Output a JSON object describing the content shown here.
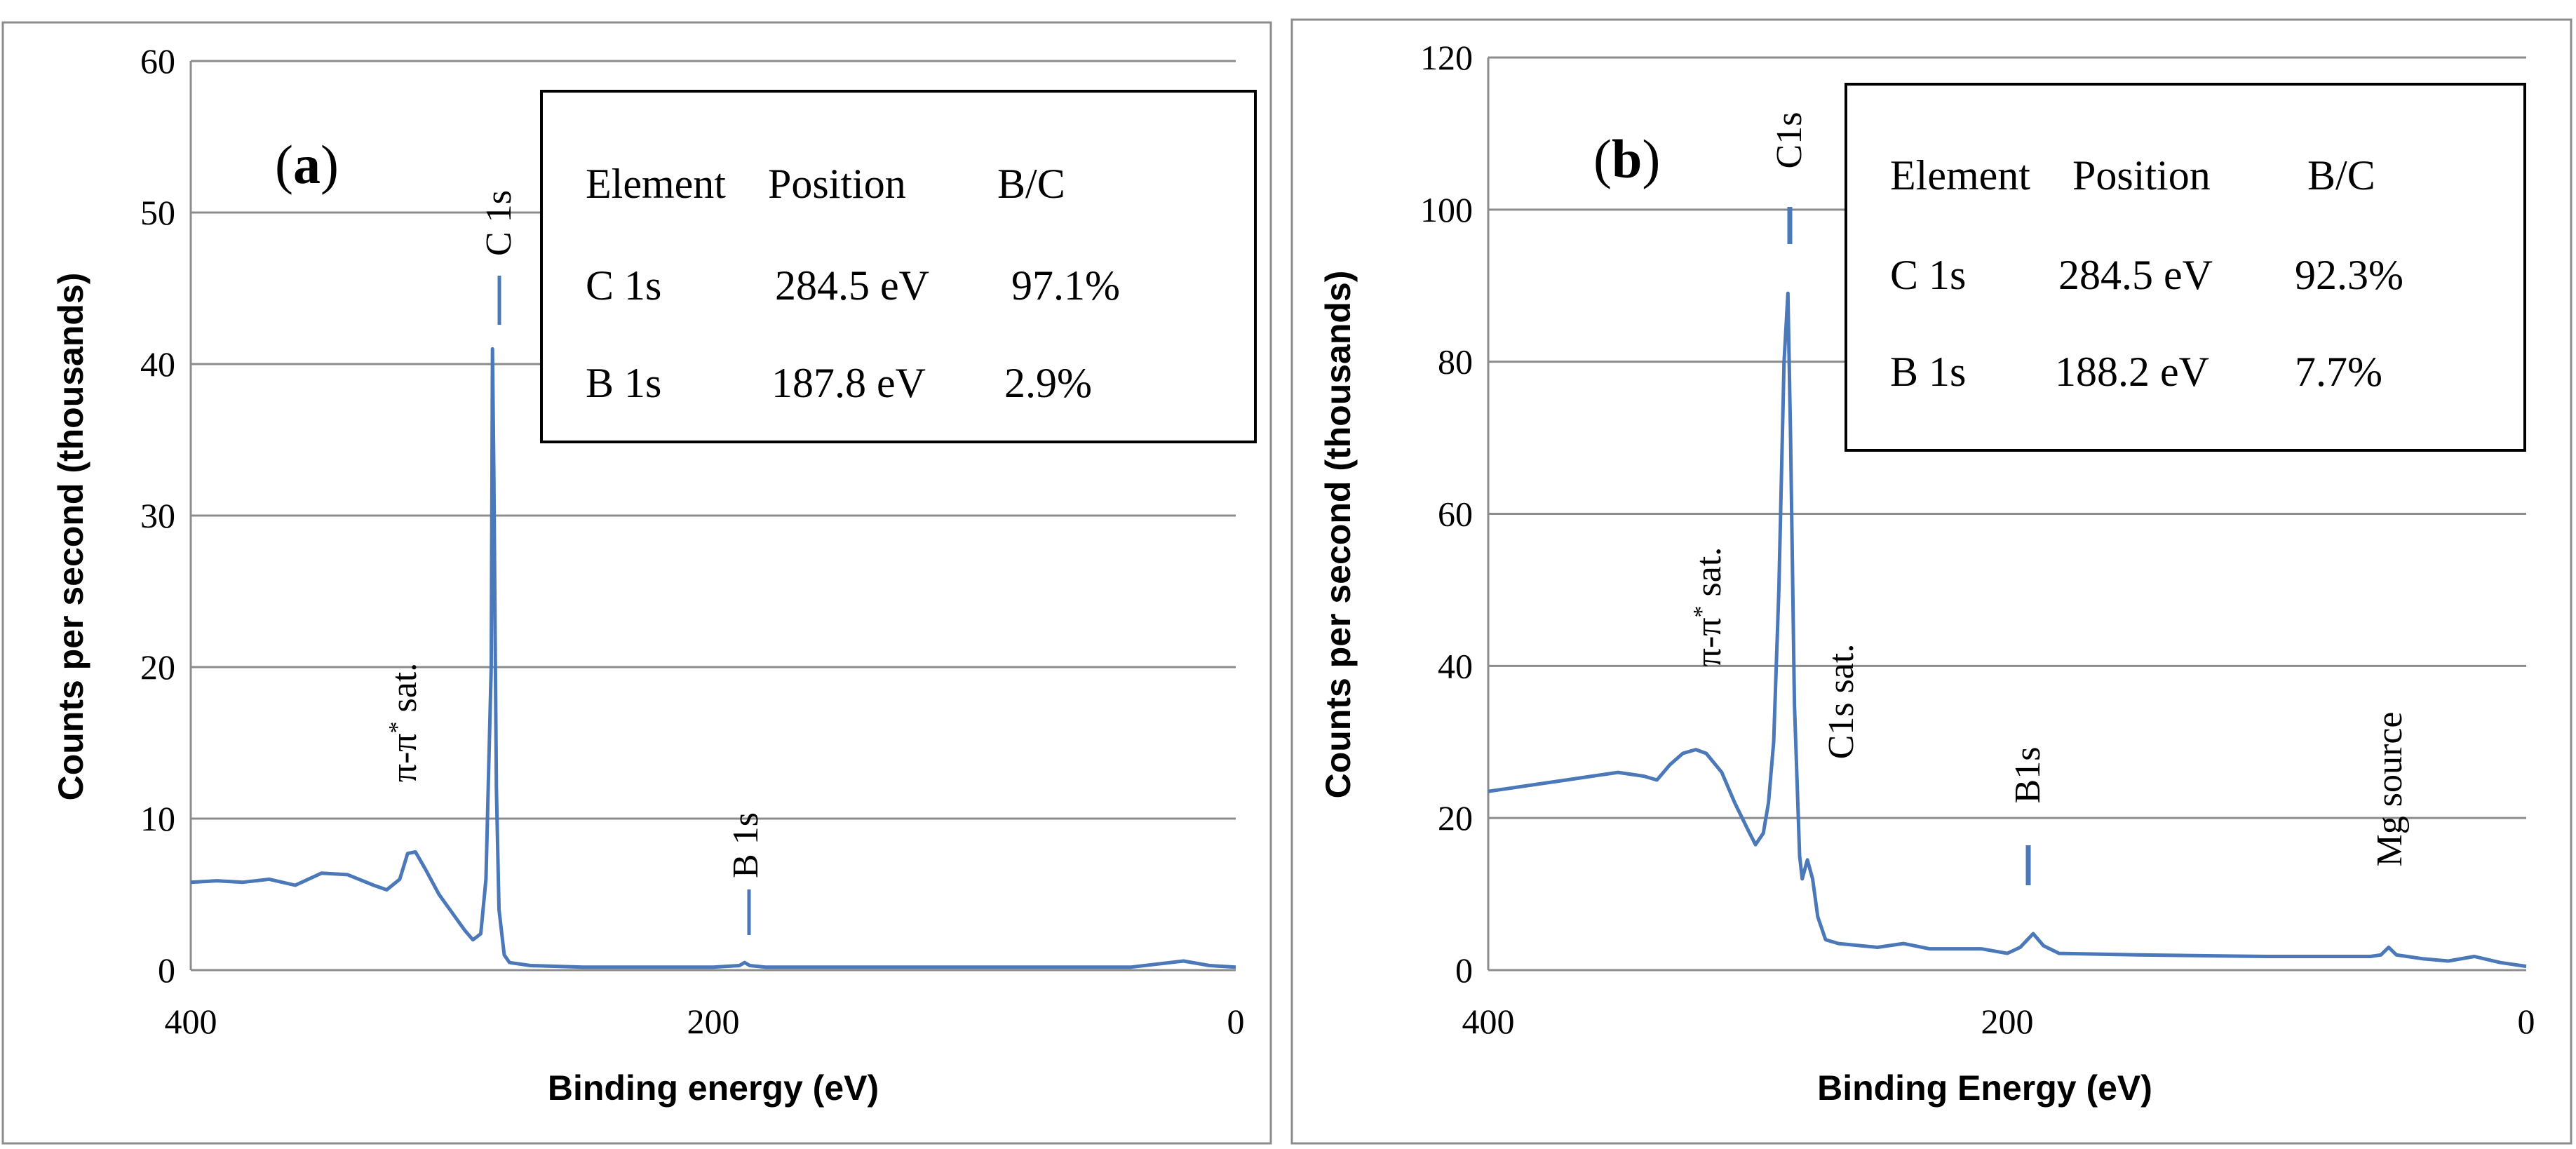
{
  "figure": {
    "colors": {
      "line": "#4a78b9",
      "grid": "#8c8c8c",
      "frame": "#8c8c8c",
      "box": "#000000",
      "background": "#ffffff"
    }
  },
  "chart_data": [
    {
      "type": "line",
      "panel_label": "a",
      "xlabel": "Binding energy  (eV)",
      "ylabel": "Counts per second (thousands)",
      "xlim": [
        400,
        0
      ],
      "ylim": [
        0,
        60
      ],
      "x_ticks": [
        "400",
        "200",
        "0"
      ],
      "y_ticks": [
        "0",
        "10",
        "20",
        "30",
        "40",
        "50",
        "60"
      ],
      "grid": true,
      "series": [
        {
          "name": "XPS survey spectrum",
          "points": [
            [
              400,
              5.8
            ],
            [
              390,
              5.9
            ],
            [
              380,
              5.8
            ],
            [
              370,
              6.0
            ],
            [
              360,
              5.6
            ],
            [
              350,
              6.4
            ],
            [
              340,
              6.3
            ],
            [
              330,
              5.6
            ],
            [
              325,
              5.3
            ],
            [
              320,
              6.0
            ],
            [
              317,
              7.7
            ],
            [
              314,
              7.8
            ],
            [
              310,
              6.6
            ],
            [
              305,
              5.0
            ],
            [
              300,
              3.8
            ],
            [
              295,
              2.6
            ],
            [
              292,
              2.0
            ],
            [
              289,
              2.4
            ],
            [
              287,
              6
            ],
            [
              285,
              20
            ],
            [
              284.5,
              41
            ],
            [
              284,
              33
            ],
            [
              283,
              12
            ],
            [
              282,
              4
            ],
            [
              280,
              1.0
            ],
            [
              278,
              0.5
            ],
            [
              270,
              0.3
            ],
            [
              250,
              0.2
            ],
            [
              200,
              0.2
            ],
            [
              190,
              0.3
            ],
            [
              188,
              0.5
            ],
            [
              186,
              0.3
            ],
            [
              180,
              0.2
            ],
            [
              100,
              0.2
            ],
            [
              40,
              0.2
            ],
            [
              20,
              0.6
            ],
            [
              10,
              0.3
            ],
            [
              0,
              0.2
            ]
          ]
        }
      ],
      "annotations": [
        {
          "text": "C 1s",
          "x": 284.5,
          "y": 45
        },
        {
          "text": "B 1s",
          "x": 188,
          "y": 3
        },
        {
          "text": "π-π",
          "superscript": "*",
          "suffix": " sat.",
          "x": 317,
          "y": 14
        }
      ],
      "table": {
        "headers": [
          "Element",
          "Position",
          "B/C"
        ],
        "rows": [
          [
            "C 1s",
            "284.5 eV",
            "97.1%"
          ],
          [
            "B 1s",
            "187.8 eV",
            "2.9%"
          ]
        ]
      }
    },
    {
      "type": "line",
      "panel_label": "b",
      "xlabel": "Binding Energy (eV)",
      "ylabel": "Counts per second (thousands)",
      "xlim": [
        400,
        0
      ],
      "ylim": [
        0,
        120
      ],
      "x_ticks": [
        "400",
        "200",
        "0"
      ],
      "y_ticks": [
        "0",
        "20",
        "40",
        "60",
        "80",
        "100",
        "120"
      ],
      "grid": true,
      "series": [
        {
          "name": "XPS survey spectrum",
          "points": [
            [
              400,
              23.5
            ],
            [
              390,
              24.0
            ],
            [
              380,
              24.5
            ],
            [
              370,
              25.0
            ],
            [
              360,
              25.5
            ],
            [
              350,
              26.0
            ],
            [
              340,
              25.5
            ],
            [
              335,
              25.0
            ],
            [
              330,
              27.0
            ],
            [
              325,
              28.5
            ],
            [
              320,
              29.0
            ],
            [
              316,
              28.5
            ],
            [
              310,
              26.0
            ],
            [
              305,
              22.0
            ],
            [
              300,
              18.5
            ],
            [
              297,
              16.5
            ],
            [
              294,
              18.0
            ],
            [
              292,
              22
            ],
            [
              290,
              30
            ],
            [
              288,
              50
            ],
            [
              286,
              80
            ],
            [
              284.5,
              89
            ],
            [
              283.5,
              70
            ],
            [
              282,
              35
            ],
            [
              280,
              15
            ],
            [
              279,
              12
            ],
            [
              277,
              14.5
            ],
            [
              275,
              12
            ],
            [
              273,
              7
            ],
            [
              270,
              4
            ],
            [
              265,
              3.5
            ],
            [
              250,
              3.0
            ],
            [
              240,
              3.5
            ],
            [
              230,
              2.8
            ],
            [
              210,
              2.8
            ],
            [
              200,
              2.2
            ],
            [
              195,
              3.0
            ],
            [
              190,
              4.8
            ],
            [
              186,
              3.2
            ],
            [
              180,
              2.2
            ],
            [
              150,
              2.0
            ],
            [
              100,
              1.8
            ],
            [
              60,
              1.8
            ],
            [
              56,
              2.0
            ],
            [
              53,
              3.0
            ],
            [
              50,
              2.0
            ],
            [
              40,
              1.5
            ],
            [
              30,
              1.2
            ],
            [
              20,
              1.8
            ],
            [
              10,
              1.0
            ],
            [
              0,
              0.5
            ]
          ]
        }
      ],
      "annotations": [
        {
          "text": "C1s",
          "x": 284.5,
          "y": 104
        },
        {
          "text": "C1s sat.",
          "x": 274,
          "y": 22
        },
        {
          "text": "B1s",
          "x": 190,
          "y": 17
        },
        {
          "text": "Mg source",
          "x": 53,
          "y": 12
        },
        {
          "text": "π-π",
          "superscript": "*",
          "suffix": " sat.",
          "x": 315,
          "y": 36
        }
      ],
      "table": {
        "headers": [
          "Element",
          "Position",
          "B/C"
        ],
        "rows": [
          [
            "C 1s",
            "284.5 eV",
            "92.3%"
          ],
          [
            "B 1s",
            "188.2 eV",
            "7.7%"
          ]
        ]
      }
    }
  ]
}
